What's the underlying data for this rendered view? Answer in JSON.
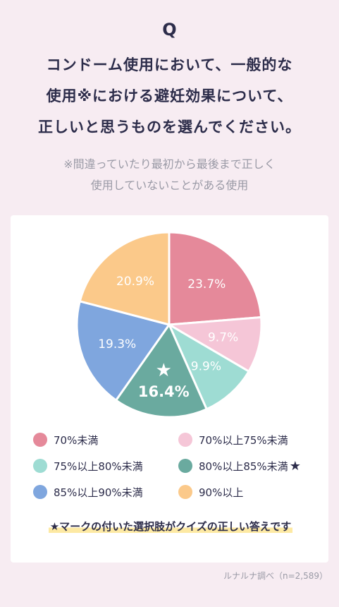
{
  "header": {
    "q_mark": "Q",
    "question_lines": [
      "コンドーム使用において、一般的な",
      "使用※における避妊効果について、",
      "正しいと思うものを選んでください。"
    ],
    "note_lines": [
      "※間違っていたり最初から最後まで正しく",
      "使用していないことがある使用"
    ]
  },
  "chart_data": {
    "type": "pie",
    "slices": [
      {
        "label": "70%未満",
        "value": 23.7,
        "display": "23.7%",
        "color": "#e5899a",
        "correct": false
      },
      {
        "label": "70%以上75%未満",
        "value": 9.7,
        "display": "9.7%",
        "color": "#f5c6d7",
        "correct": false
      },
      {
        "label": "75%以上80%未満",
        "value": 9.9,
        "display": "9.9%",
        "color": "#9edcd3",
        "correct": false
      },
      {
        "label": "80%以上85%未満",
        "value": 16.4,
        "display": "16.4%",
        "color": "#6aaa9f",
        "correct": true
      },
      {
        "label": "85%以上90%未満",
        "value": 19.3,
        "display": "19.3%",
        "color": "#7fa6de",
        "correct": false
      },
      {
        "label": "90%以上",
        "value": 20.9,
        "display": "20.9%",
        "color": "#fbc98a",
        "correct": false
      }
    ],
    "start": "12 o'clock",
    "direction": "clockwise"
  },
  "legend_star": "★",
  "footnote": "★マークの付いた選択肢がクイズの正しい答えです",
  "source": "ルナルナ調べ（n=2,589）"
}
